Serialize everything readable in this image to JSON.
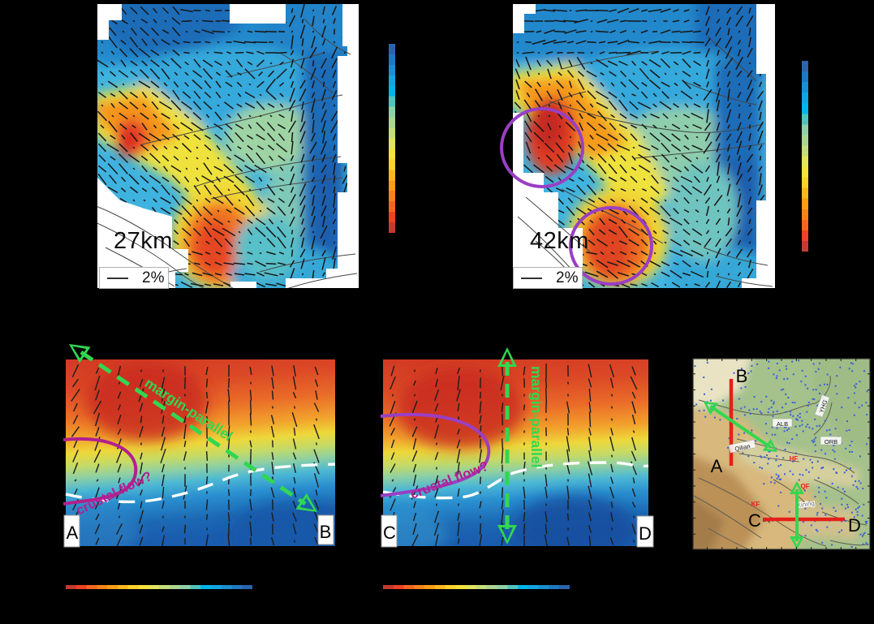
{
  "colors": {
    "background": "#000000",
    "panel_bg": "#ffffff",
    "accent_green": "#32d750",
    "accent_purple": "#9a3fc4",
    "accent_magenta": "#b2208e",
    "profile_red": "#e52019",
    "station_blue": "#3c5fd8",
    "fault_gray": "#454545",
    "inset_fault_gray": "#5f5f52",
    "moho_white": "#ffffff",
    "bar_black": "#161616"
  },
  "colorbar": {
    "stops_top_to_bottom": [
      "#2c63ad",
      "#1f78c0",
      "#1b8fd0",
      "#12a5e0",
      "#00b5e8",
      "#4fc4bf",
      "#8fd0a8",
      "#abd68f",
      "#c5dd7a",
      "#e3e45e",
      "#f5e33c",
      "#fdd22a",
      "#fdb81e",
      "#fb9d14",
      "#f8821a",
      "#f4661f",
      "#ef4123",
      "#c63930"
    ]
  },
  "maps": [
    {
      "depth_label": "27km",
      "scale_label": "2%"
    },
    {
      "depth_label": "42km",
      "scale_label": "2%"
    }
  ],
  "sections": [
    {
      "start_label": "A",
      "end_label": "B",
      "arrow_label": "margin-parallel",
      "flow_label": "crustal flow?"
    },
    {
      "start_label": "C",
      "end_label": "D",
      "arrow_label": "margin-parallel",
      "flow_label": "crustal flow?"
    }
  ],
  "inset": {
    "corner_a": "A",
    "corner_b": "B",
    "corner_c": "C",
    "corner_d": "D",
    "region_labels": {
      "alb": "ALB",
      "yhg": "YHG",
      "orb": "ORB",
      "qilian": "Qilian",
      "xining": "Xining",
      "bqt": "BQT"
    },
    "fault_labels": {
      "hf": "HF",
      "qf": "QF",
      "kf": "KF"
    }
  },
  "chart_data": {
    "type": "heatmap",
    "panels": [
      {
        "kind": "map-depth-slice",
        "depth_label": "27km",
        "anisotropy_scale_label": "2%",
        "palette": "blue (top of colorbar) to red (bottom), discrete steps, unlabeled"
      },
      {
        "kind": "map-depth-slice",
        "depth_label": "42km",
        "anisotropy_scale_label": "2%",
        "highlights": "two purple circles around low-velocity (red) anomalies"
      },
      {
        "kind": "cross-section",
        "profile": "A-B",
        "annotations": [
          "margin-parallel",
          "crustal flow?"
        ],
        "features": [
          "green dashed double arrow along profile",
          "magenta closed contour near A",
          "white dashed interface"
        ]
      },
      {
        "kind": "cross-section",
        "profile": "C-D",
        "annotations": [
          "margin-parallel",
          "crustal flow?"
        ],
        "features": [
          "green dashed vertical double arrow",
          "purple closed contour near C",
          "white dashed interface"
        ]
      },
      {
        "kind": "location-map",
        "profiles": [
          "A-B (red, N-S)",
          "C-D (red, E-W)"
        ],
        "labels_visible": [
          "A",
          "B",
          "C",
          "D",
          "ALB",
          "YHG",
          "ORB",
          "Qilian",
          "Xining",
          "BQT",
          "HF",
          "QF",
          "KF"
        ],
        "symbols": "blue station dots, gray faults, green double arrows"
      }
    ]
  }
}
